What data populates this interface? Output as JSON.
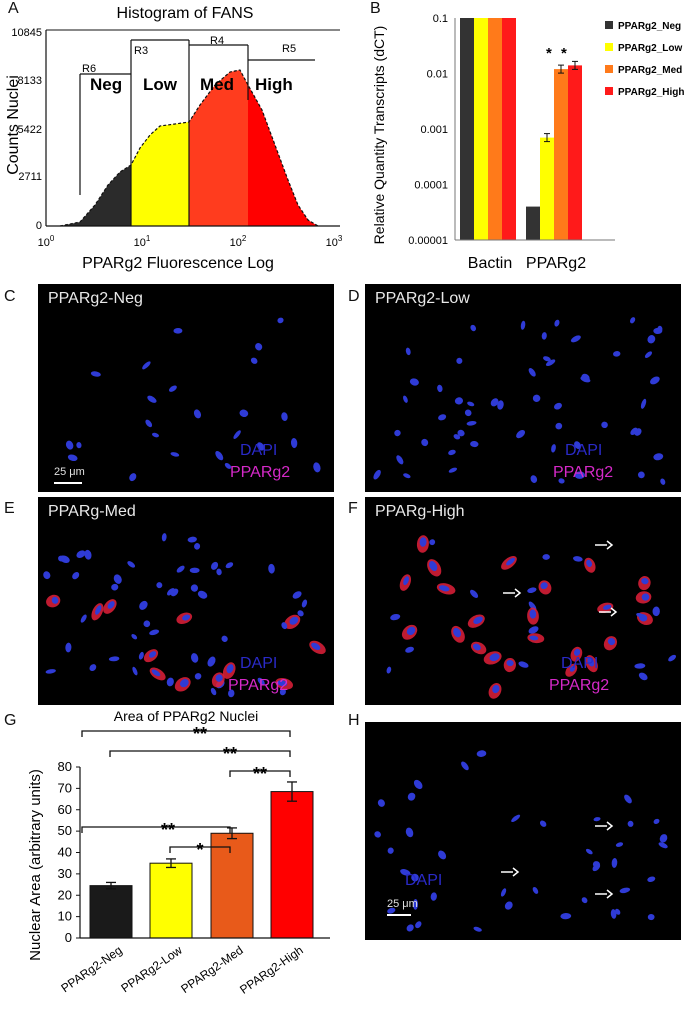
{
  "panels": {
    "a": "A",
    "b": "B",
    "c": "C",
    "d": "D",
    "e": "E",
    "f": "F",
    "g": "G",
    "h": "H"
  },
  "histogram": {
    "title": "Histogram of FANS",
    "ylabel": "Counts Nuclei",
    "xlabel": "PPARg2 Fluorescence Log",
    "yticks": [
      "10845",
      "8133",
      "5422",
      "2711",
      "0"
    ],
    "xticks": [
      {
        "base": "10",
        "exp": "0"
      },
      {
        "base": "10",
        "exp": "1"
      },
      {
        "base": "10",
        "exp": "2"
      },
      {
        "base": "10",
        "exp": "3"
      }
    ],
    "gates": [
      "R6",
      "R3",
      "R4",
      "R5"
    ],
    "populations": [
      "Neg",
      "Low",
      "Med",
      "High"
    ],
    "colors": {
      "neg": "#2b2b2b",
      "low": "#ffff00",
      "med": "#ff3c1e",
      "high": "#ff0000"
    }
  },
  "chart_data": [
    {
      "type": "bar",
      "ylabel": "Relative Quantity Transcripts (dCT)",
      "categories": [
        "Bactin",
        "PPARg2"
      ],
      "yscale": "log",
      "ylim": [
        1e-05,
        0.1
      ],
      "yticks": [
        "0.1",
        "0.01",
        "0.001",
        "0.0001",
        "0.00001"
      ],
      "series": [
        {
          "name": "PPARg2_Neg",
          "color": "#333333",
          "values": [
            0.1,
            4e-05
          ]
        },
        {
          "name": "PPARg2_Low",
          "color": "#ffff00",
          "values": [
            0.1,
            0.0007
          ]
        },
        {
          "name": "PPARg2_Med",
          "color": "#ff7a1a",
          "values": [
            0.1,
            0.012
          ]
        },
        {
          "name": "PPARg2_High",
          "color": "#ff1a1a",
          "values": [
            0.1,
            0.014
          ]
        }
      ],
      "annotations": [
        "*",
        "*"
      ],
      "legend": "right"
    },
    {
      "type": "bar",
      "title": "Area of PPARg2 Nuclei",
      "ylabel": "Nuclear Area (arbitrary units)",
      "categories": [
        "PPARg2-Neg",
        "PPARg2-Low",
        "PPARg2-Med",
        "PPARg2-High"
      ],
      "values": [
        24.5,
        35,
        49,
        68.5
      ],
      "errors": [
        1.5,
        2,
        2.5,
        4.5
      ],
      "colors": [
        "#1a1a1a",
        "#ffff00",
        "#e85a1a",
        "#ff0000"
      ],
      "ylim": [
        0,
        80
      ],
      "yticks": [
        "0",
        "10",
        "20",
        "30",
        "40",
        "50",
        "60",
        "70",
        "80"
      ],
      "significance": [
        "**",
        "**",
        "**",
        "**",
        "*"
      ]
    }
  ],
  "micrographs": {
    "c": {
      "title": "PPARg2-Neg",
      "dapi": "DAPI",
      "ppar": "PPARg2",
      "scale": "25 μm"
    },
    "d": {
      "title": "PPARg2-Low",
      "dapi": "DAPI",
      "ppar": "PPARg2"
    },
    "e": {
      "title": "PPARg-Med",
      "dapi": "DAPI",
      "ppar": "PPARg2"
    },
    "f": {
      "title": "PPARg-High",
      "dapi": "DAPI",
      "ppar": "PPARg2"
    },
    "h": {
      "dapi": "DAPI",
      "scale": "25 μm"
    }
  }
}
